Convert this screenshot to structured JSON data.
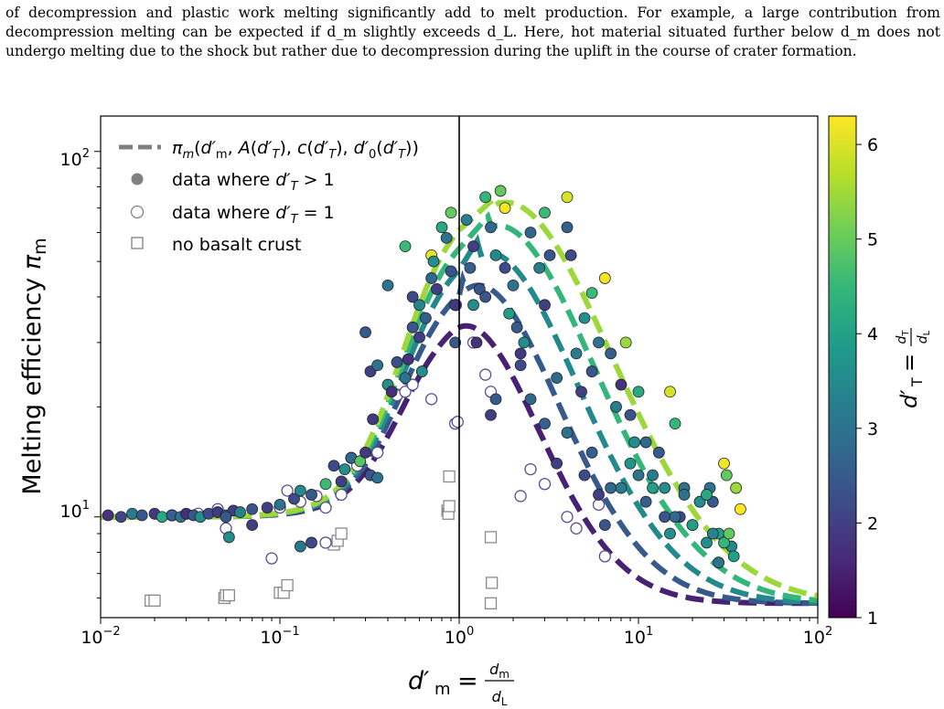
{
  "paragraph": "of decompression and plastic work melting significantly add to melt production. For example, a large contribution from decompression melting can be expected if d_m slightly exceeds d_L. Here, hot material situated further below d_m does not undergo melting due to the shock but rather due to decompression during the uplift in the course of crater formation.",
  "chart_data": {
    "type": "scatter",
    "xscale": "log",
    "yscale": "log",
    "xlim": [
      0.01,
      100
    ],
    "ylim": [
      5.3,
      125
    ],
    "xlabel": "d'm = dm / dL",
    "ylabel": "Melting efficiency πm",
    "x_ticks": [
      "10^-2",
      "10^-1",
      "10^0",
      "10^1",
      "10^2"
    ],
    "y_ticks": [
      "10^1",
      "10^2"
    ],
    "vertical_line_x": 1,
    "legend": {
      "placement": "top-left",
      "entries": [
        "πm(d'm, A(d'T), c(d'T), d'0(d'T))",
        "data where d'T > 1",
        "data where d'T = 1",
        "no basalt crust"
      ]
    },
    "colorbar": {
      "label": "d'T = dT / dL",
      "colormap": "viridis",
      "range": [
        1,
        6.3
      ],
      "ticks": [
        "1",
        "2",
        "3",
        "4",
        "5",
        "6"
      ]
    },
    "colors": {
      "viridis": [
        "#440154",
        "#482878",
        "#3e4989",
        "#31688e",
        "#26828e",
        "#1f9e89",
        "#35b779",
        "#6ece58",
        "#b5de2b",
        "#fde725"
      ]
    },
    "curves_dT": [
      1.5,
      2.5,
      3.5,
      4.5,
      5.5
    ],
    "filled_points": [
      [
        0.011,
        10.1,
        1.8
      ],
      [
        0.013,
        10.0,
        2.1
      ],
      [
        0.015,
        10.2,
        3.2
      ],
      [
        0.017,
        10.1,
        2.4
      ],
      [
        0.02,
        10.2,
        1.9
      ],
      [
        0.022,
        10.0,
        4.2
      ],
      [
        0.025,
        10.1,
        2.6
      ],
      [
        0.028,
        10.0,
        3.0
      ],
      [
        0.03,
        10.2,
        1.7
      ],
      [
        0.033,
        10.1,
        2.5
      ],
      [
        0.036,
        10.0,
        3.6
      ],
      [
        0.04,
        10.2,
        2.2
      ],
      [
        0.045,
        10.3,
        1.9
      ],
      [
        0.05,
        10.1,
        2.8
      ],
      [
        0.055,
        10.4,
        2.0
      ],
      [
        0.06,
        10.3,
        3.3
      ],
      [
        0.07,
        10.5,
        2.4
      ],
      [
        0.085,
        10.6,
        2.0
      ],
      [
        0.1,
        10.8,
        3.0
      ],
      [
        0.12,
        11.2,
        2.2
      ],
      [
        0.05,
        10.0,
        2.5
      ],
      [
        0.052,
        8.8,
        3.6
      ],
      [
        0.07,
        9.5,
        2.0
      ],
      [
        0.13,
        8.3,
        3.1
      ],
      [
        0.15,
        8.5,
        2.2
      ],
      [
        0.13,
        11.8,
        3.5
      ],
      [
        0.15,
        11.5,
        2.5
      ],
      [
        0.18,
        12.3,
        4.6
      ],
      [
        0.2,
        13.8,
        2.2
      ],
      [
        0.23,
        13.5,
        3.6
      ],
      [
        0.25,
        14.5,
        2.8
      ],
      [
        0.28,
        14.2,
        4.9
      ],
      [
        0.22,
        12.5,
        2.0
      ],
      [
        0.32,
        13.0,
        2.4
      ],
      [
        0.3,
        15.0,
        1.9
      ],
      [
        0.35,
        12.8,
        3.0
      ],
      [
        0.3,
        32,
        2.5
      ],
      [
        0.32,
        25,
        2.0
      ],
      [
        0.35,
        26,
        3.0
      ],
      [
        0.33,
        18.5,
        1.9
      ],
      [
        0.4,
        23,
        3.6
      ],
      [
        0.42,
        22,
        1.7
      ],
      [
        0.45,
        26.5,
        2.3
      ],
      [
        0.5,
        24,
        3.0
      ],
      [
        0.52,
        27,
        1.8
      ],
      [
        0.55,
        33,
        2.4
      ],
      [
        0.6,
        31,
        2.0
      ],
      [
        0.62,
        25,
        3.6
      ],
      [
        0.65,
        35,
        2.6
      ],
      [
        0.4,
        43,
        3.0
      ],
      [
        0.5,
        55,
        4.6
      ],
      [
        0.55,
        40,
        2.2
      ],
      [
        0.6,
        38,
        3.4
      ],
      [
        0.7,
        45,
        2.8
      ],
      [
        0.7,
        52,
        6.1
      ],
      [
        0.72,
        50,
        3.6
      ],
      [
        0.75,
        42,
        2.0
      ],
      [
        0.8,
        62,
        4.2
      ],
      [
        0.85,
        58,
        3.0
      ],
      [
        0.9,
        47,
        2.4
      ],
      [
        0.9,
        68,
        5.0
      ],
      [
        0.95,
        38,
        1.9
      ],
      [
        0.95,
        30,
        2.5
      ],
      [
        1.1,
        65,
        3.3
      ],
      [
        1.15,
        48,
        2.6
      ],
      [
        1.2,
        55,
        2.0
      ],
      [
        1.2,
        38,
        3.6
      ],
      [
        1.25,
        30,
        1.8
      ],
      [
        1.3,
        42,
        2.4
      ],
      [
        1.4,
        75,
        4.5
      ],
      [
        1.5,
        62,
        2.8
      ],
      [
        1.6,
        52,
        3.5
      ],
      [
        1.7,
        78,
        5.0
      ],
      [
        1.8,
        70,
        6.2
      ],
      [
        1.8,
        48,
        2.2
      ],
      [
        1.9,
        36,
        4.0
      ],
      [
        2.0,
        43,
        3.0
      ],
      [
        2.1,
        33,
        2.5
      ],
      [
        2.2,
        28,
        1.9
      ],
      [
        2.3,
        30,
        3.6
      ],
      [
        2.5,
        60,
        2.7
      ],
      [
        2.8,
        48,
        3.2
      ],
      [
        3.0,
        38,
        2.0
      ],
      [
        3.0,
        68,
        4.6
      ],
      [
        3.2,
        52,
        2.4
      ],
      [
        3.5,
        24,
        2.8
      ],
      [
        4.0,
        75,
        6.0
      ],
      [
        4.0,
        62,
        2.6
      ],
      [
        4.2,
        52,
        2.2
      ],
      [
        4.5,
        28,
        3.2
      ],
      [
        4.8,
        22,
        2.0
      ],
      [
        5.0,
        35,
        3.6
      ],
      [
        5.5,
        25,
        2.4
      ],
      [
        5.5,
        41,
        4.6
      ],
      [
        6.0,
        30,
        3.0
      ],
      [
        6.5,
        45,
        6.2
      ],
      [
        7.0,
        28,
        2.6
      ],
      [
        7.5,
        20,
        3.2
      ],
      [
        8.0,
        23,
        1.8
      ],
      [
        8.5,
        30,
        5.5
      ],
      [
        9.0,
        19,
        2.4
      ],
      [
        9.5,
        16,
        3.6
      ],
      [
        10.0,
        22,
        4.2
      ],
      [
        11.0,
        16,
        2.8
      ],
      [
        12.0,
        13,
        3.2
      ],
      [
        13.0,
        15,
        2.5
      ],
      [
        14.0,
        12,
        3.6
      ],
      [
        15.0,
        22,
        6.0
      ],
      [
        16.0,
        18,
        4.5
      ],
      [
        17.0,
        10,
        2.2
      ],
      [
        18.0,
        12,
        3.0
      ],
      [
        20.0,
        9.5,
        2.6
      ],
      [
        22.0,
        11,
        4.6
      ],
      [
        24.0,
        8.5,
        3.6
      ],
      [
        25.0,
        12,
        3.0
      ],
      [
        26.0,
        11,
        2.5
      ],
      [
        28.0,
        9,
        4.0
      ],
      [
        30.0,
        14,
        6.2
      ],
      [
        31.0,
        13,
        5.0
      ],
      [
        33.0,
        8.3,
        3.5
      ],
      [
        35.0,
        12,
        5.5
      ],
      [
        37.0,
        10.5,
        6.4
      ],
      [
        1.4,
        40,
        2.4
      ],
      [
        1.5,
        19,
        2.0
      ],
      [
        1.6,
        21,
        2.5
      ],
      [
        2.2,
        26,
        2.2
      ],
      [
        2.5,
        21,
        2.8
      ],
      [
        3.0,
        18,
        2.6
      ],
      [
        3.5,
        14,
        2.0
      ],
      [
        4.0,
        17,
        3.0
      ],
      [
        5.0,
        13,
        2.2
      ],
      [
        5.5,
        15,
        2.6
      ],
      [
        6.0,
        11.5,
        2.0
      ],
      [
        6.5,
        9.5,
        2.4
      ],
      [
        7.0,
        12,
        2.8
      ],
      [
        8.0,
        12,
        3.2
      ],
      [
        9.0,
        14,
        3.8
      ],
      [
        10.0,
        13,
        3.0
      ],
      [
        11.0,
        11,
        2.6
      ],
      [
        12.0,
        12,
        4.0
      ],
      [
        14.0,
        10,
        2.4
      ],
      [
        15.0,
        9,
        3.6
      ],
      [
        16.0,
        10,
        2.8
      ],
      [
        18.0,
        11.5,
        3.0
      ],
      [
        20.0,
        9.5,
        4.0
      ],
      [
        22.0,
        11,
        3.6
      ],
      [
        24.0,
        11.5,
        4.2
      ],
      [
        26.0,
        9,
        3.4
      ],
      [
        28.0,
        7.5,
        3.0
      ],
      [
        30.0,
        8.5,
        4.5
      ],
      [
        32.0,
        9,
        5.0
      ],
      [
        34.0,
        7.8,
        4.0
      ]
    ],
    "open_points": [
      [
        0.025,
        10.1
      ],
      [
        0.035,
        10.2
      ],
      [
        0.045,
        10.5
      ],
      [
        0.05,
        9.3
      ],
      [
        0.09,
        7.7
      ],
      [
        0.1,
        10.6
      ],
      [
        0.11,
        11.8
      ],
      [
        0.13,
        11.0
      ],
      [
        0.16,
        11.4
      ],
      [
        0.18,
        10.6
      ],
      [
        0.18,
        8.5
      ],
      [
        0.22,
        11.5
      ],
      [
        0.25,
        14.5
      ],
      [
        0.27,
        13.8
      ],
      [
        0.35,
        15.0
      ],
      [
        0.45,
        21.5
      ],
      [
        0.5,
        22.0
      ],
      [
        0.55,
        23.0
      ],
      [
        0.7,
        21.0
      ],
      [
        0.95,
        18.0
      ],
      [
        0.98,
        18.2
      ],
      [
        0.96,
        38.0
      ],
      [
        1.2,
        30.0
      ],
      [
        1.5,
        22.0
      ],
      [
        1.4,
        24.5
      ],
      [
        2.2,
        11.4
      ],
      [
        2.5,
        13.5
      ],
      [
        3.0,
        12.3
      ],
      [
        4.0,
        10.0
      ],
      [
        4.5,
        9.3
      ],
      [
        6.0,
        10.8
      ],
      [
        6.5,
        7.8
      ]
    ],
    "square_points": [
      [
        0.019,
        5.9
      ],
      [
        0.02,
        5.9
      ],
      [
        0.049,
        6.0
      ],
      [
        0.05,
        6.1
      ],
      [
        0.052,
        6.1
      ],
      [
        0.1,
        6.2
      ],
      [
        0.105,
        6.2
      ],
      [
        0.11,
        6.5
      ],
      [
        0.2,
        8.4
      ],
      [
        0.21,
        8.6
      ],
      [
        0.22,
        9.0
      ],
      [
        0.86,
        10.4
      ],
      [
        0.87,
        10.2
      ],
      [
        0.88,
        10.7
      ],
      [
        0.88,
        12.9
      ],
      [
        1.5,
        8.8
      ],
      [
        1.52,
        6.6
      ],
      [
        1.5,
        5.8
      ]
    ]
  }
}
